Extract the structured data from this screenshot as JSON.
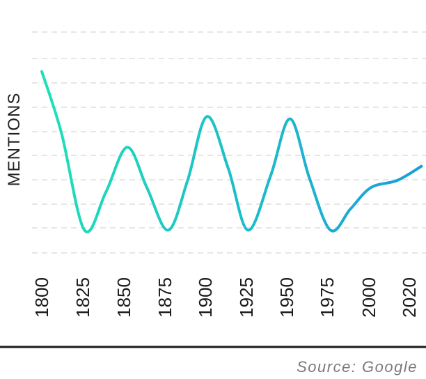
{
  "chart_data": {
    "type": "line",
    "ylabel": "MENTIONS",
    "xlabel": "",
    "x_ticks": [
      "1800",
      "1825",
      "1850",
      "1875",
      "1900",
      "1925",
      "1950",
      "1975",
      "2000",
      "2020"
    ],
    "series": [
      {
        "x": [
          1800,
          1812,
          1826,
          1839,
          1852,
          1864,
          1877,
          1889,
          1901,
          1914,
          1926,
          1940,
          1952,
          1964,
          1977,
          1989,
          2001,
          2014,
          2026
        ],
        "y": [
          8.1,
          5.5,
          1.4,
          3.0,
          4.9,
          3.2,
          1.4,
          3.5,
          6.2,
          4.0,
          1.4,
          3.7,
          6.1,
          3.6,
          1.4,
          2.3,
          3.2,
          3.5,
          4.1
        ]
      }
    ],
    "ylim": [
      0,
      10
    ],
    "grid": true,
    "gradient_colors": [
      "#1fe0b8",
      "#1a9fd9"
    ],
    "gridline_color": "#dddddd",
    "baseline_color": "#1a1a1a"
  },
  "source": "Source: Google"
}
